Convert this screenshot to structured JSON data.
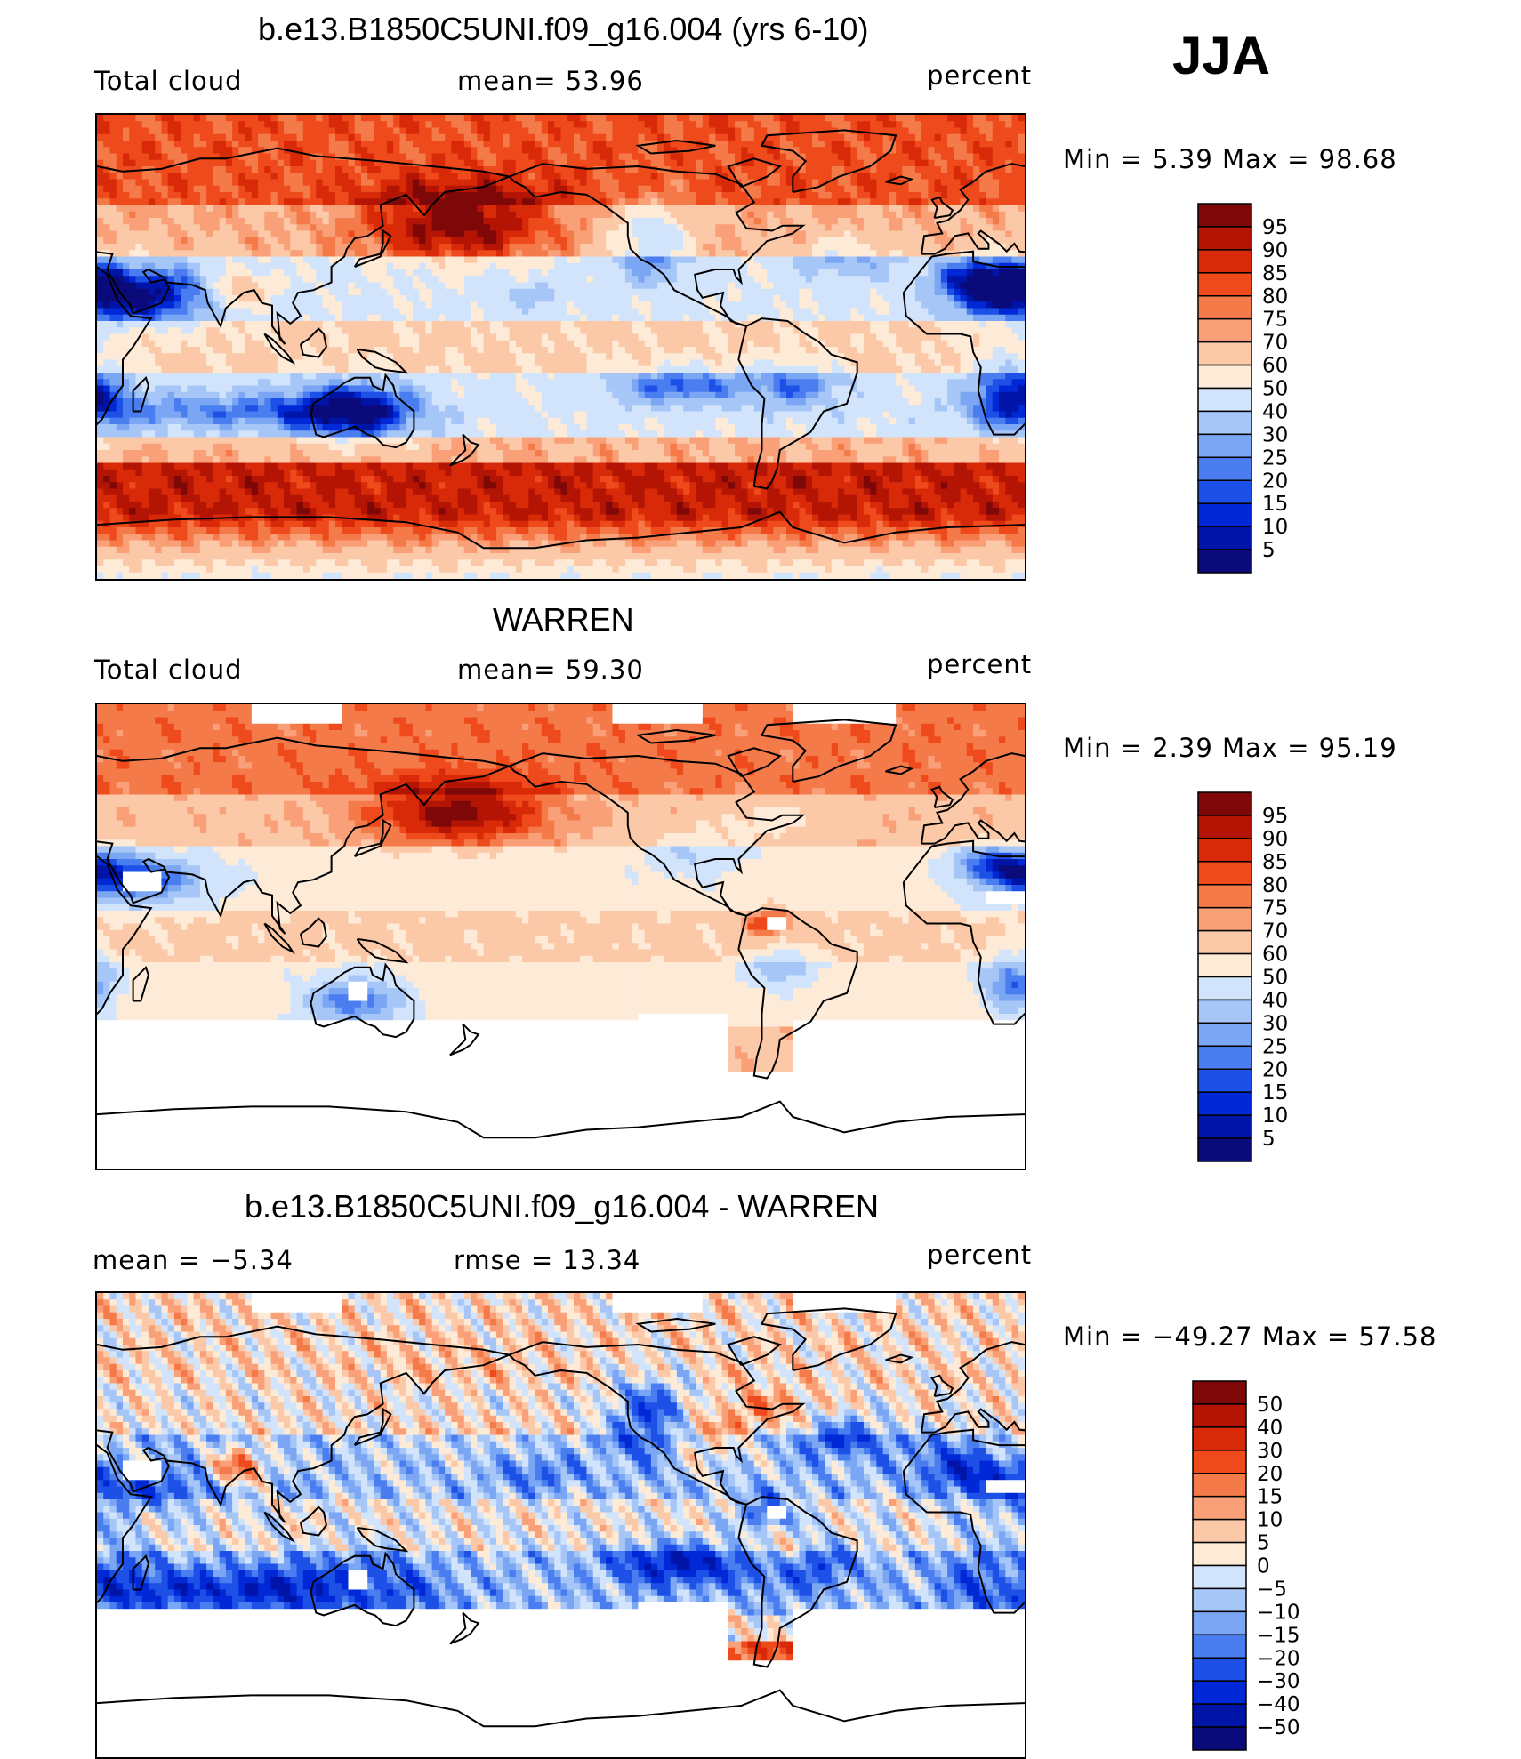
{
  "season": "JJA",
  "colors": {
    "abs_scale": [
      "#0a0a7a",
      "#0014a8",
      "#0028d6",
      "#1c50e6",
      "#4a7ef0",
      "#7aa6f4",
      "#a6c6f7",
      "#d2e4fb",
      "#fdebd8",
      "#fbc8a8",
      "#f9a078",
      "#f57a4a",
      "#ee4a1c",
      "#d82a08",
      "#b41404",
      "#7e0808"
    ],
    "diff_scale": [
      "#0a0a7a",
      "#0014a8",
      "#0028d6",
      "#1c50e6",
      "#4a7ef0",
      "#7aa6f4",
      "#a6c6f7",
      "#d2e4fb",
      "#fdebd8",
      "#fbc8a8",
      "#f9a078",
      "#f57a4a",
      "#ee4a1c",
      "#d82a08",
      "#b41404",
      "#7e0808"
    ],
    "missing": "#ffffff"
  },
  "panels": [
    {
      "title": "b.e13.B1850C5UNI.f09_g16.004 (yrs 6-10)",
      "left_label": "Total cloud",
      "center_label": "mean=   53.96",
      "units": "percent",
      "minmax": "Min  =     5.39  Max  =    98.68"
    },
    {
      "title": "WARREN",
      "left_label": "Total cloud",
      "center_label": "mean=   59.30",
      "units": "percent",
      "minmax": "Min  =     2.39  Max  =    95.19"
    },
    {
      "title": "b.e13.B1850C5UNI.f09_g16.004 - WARREN",
      "left_label": "mean  =    −5.34",
      "center_label": "rmse  =    13.34",
      "units": "percent",
      "minmax": "Min  = −49.27  Max  =    57.58"
    }
  ],
  "chart_data": [
    {
      "type": "heatmap",
      "title": "b.e13.B1850C5UNI.f09_g16.004 (yrs 6-10)",
      "variable": "Total cloud",
      "units": "percent",
      "mean": 53.96,
      "min": 5.39,
      "max": 98.68,
      "colorbar_levels": [
        "95",
        "90",
        "85",
        "80",
        "75",
        "70",
        "60",
        "50",
        "40",
        "30",
        "25",
        "20",
        "15",
        "10",
        "5"
      ]
    },
    {
      "type": "heatmap",
      "title": "WARREN",
      "variable": "Total cloud",
      "units": "percent",
      "mean": 59.3,
      "min": 2.39,
      "max": 95.19,
      "colorbar_levels": [
        "95",
        "90",
        "85",
        "80",
        "75",
        "70",
        "60",
        "50",
        "40",
        "30",
        "25",
        "20",
        "15",
        "10",
        "5"
      ]
    },
    {
      "type": "heatmap",
      "title": "b.e13.B1850C5UNI.f09_g16.004 - WARREN",
      "units": "percent",
      "mean": -5.34,
      "rmse": 13.34,
      "min": -49.27,
      "max": 57.58,
      "colorbar_levels": [
        "50",
        "40",
        "30",
        "20",
        "15",
        "10",
        "5",
        "0",
        "−5",
        "−10",
        "−15",
        "−20",
        "−30",
        "−40",
        "−50"
      ]
    }
  ]
}
